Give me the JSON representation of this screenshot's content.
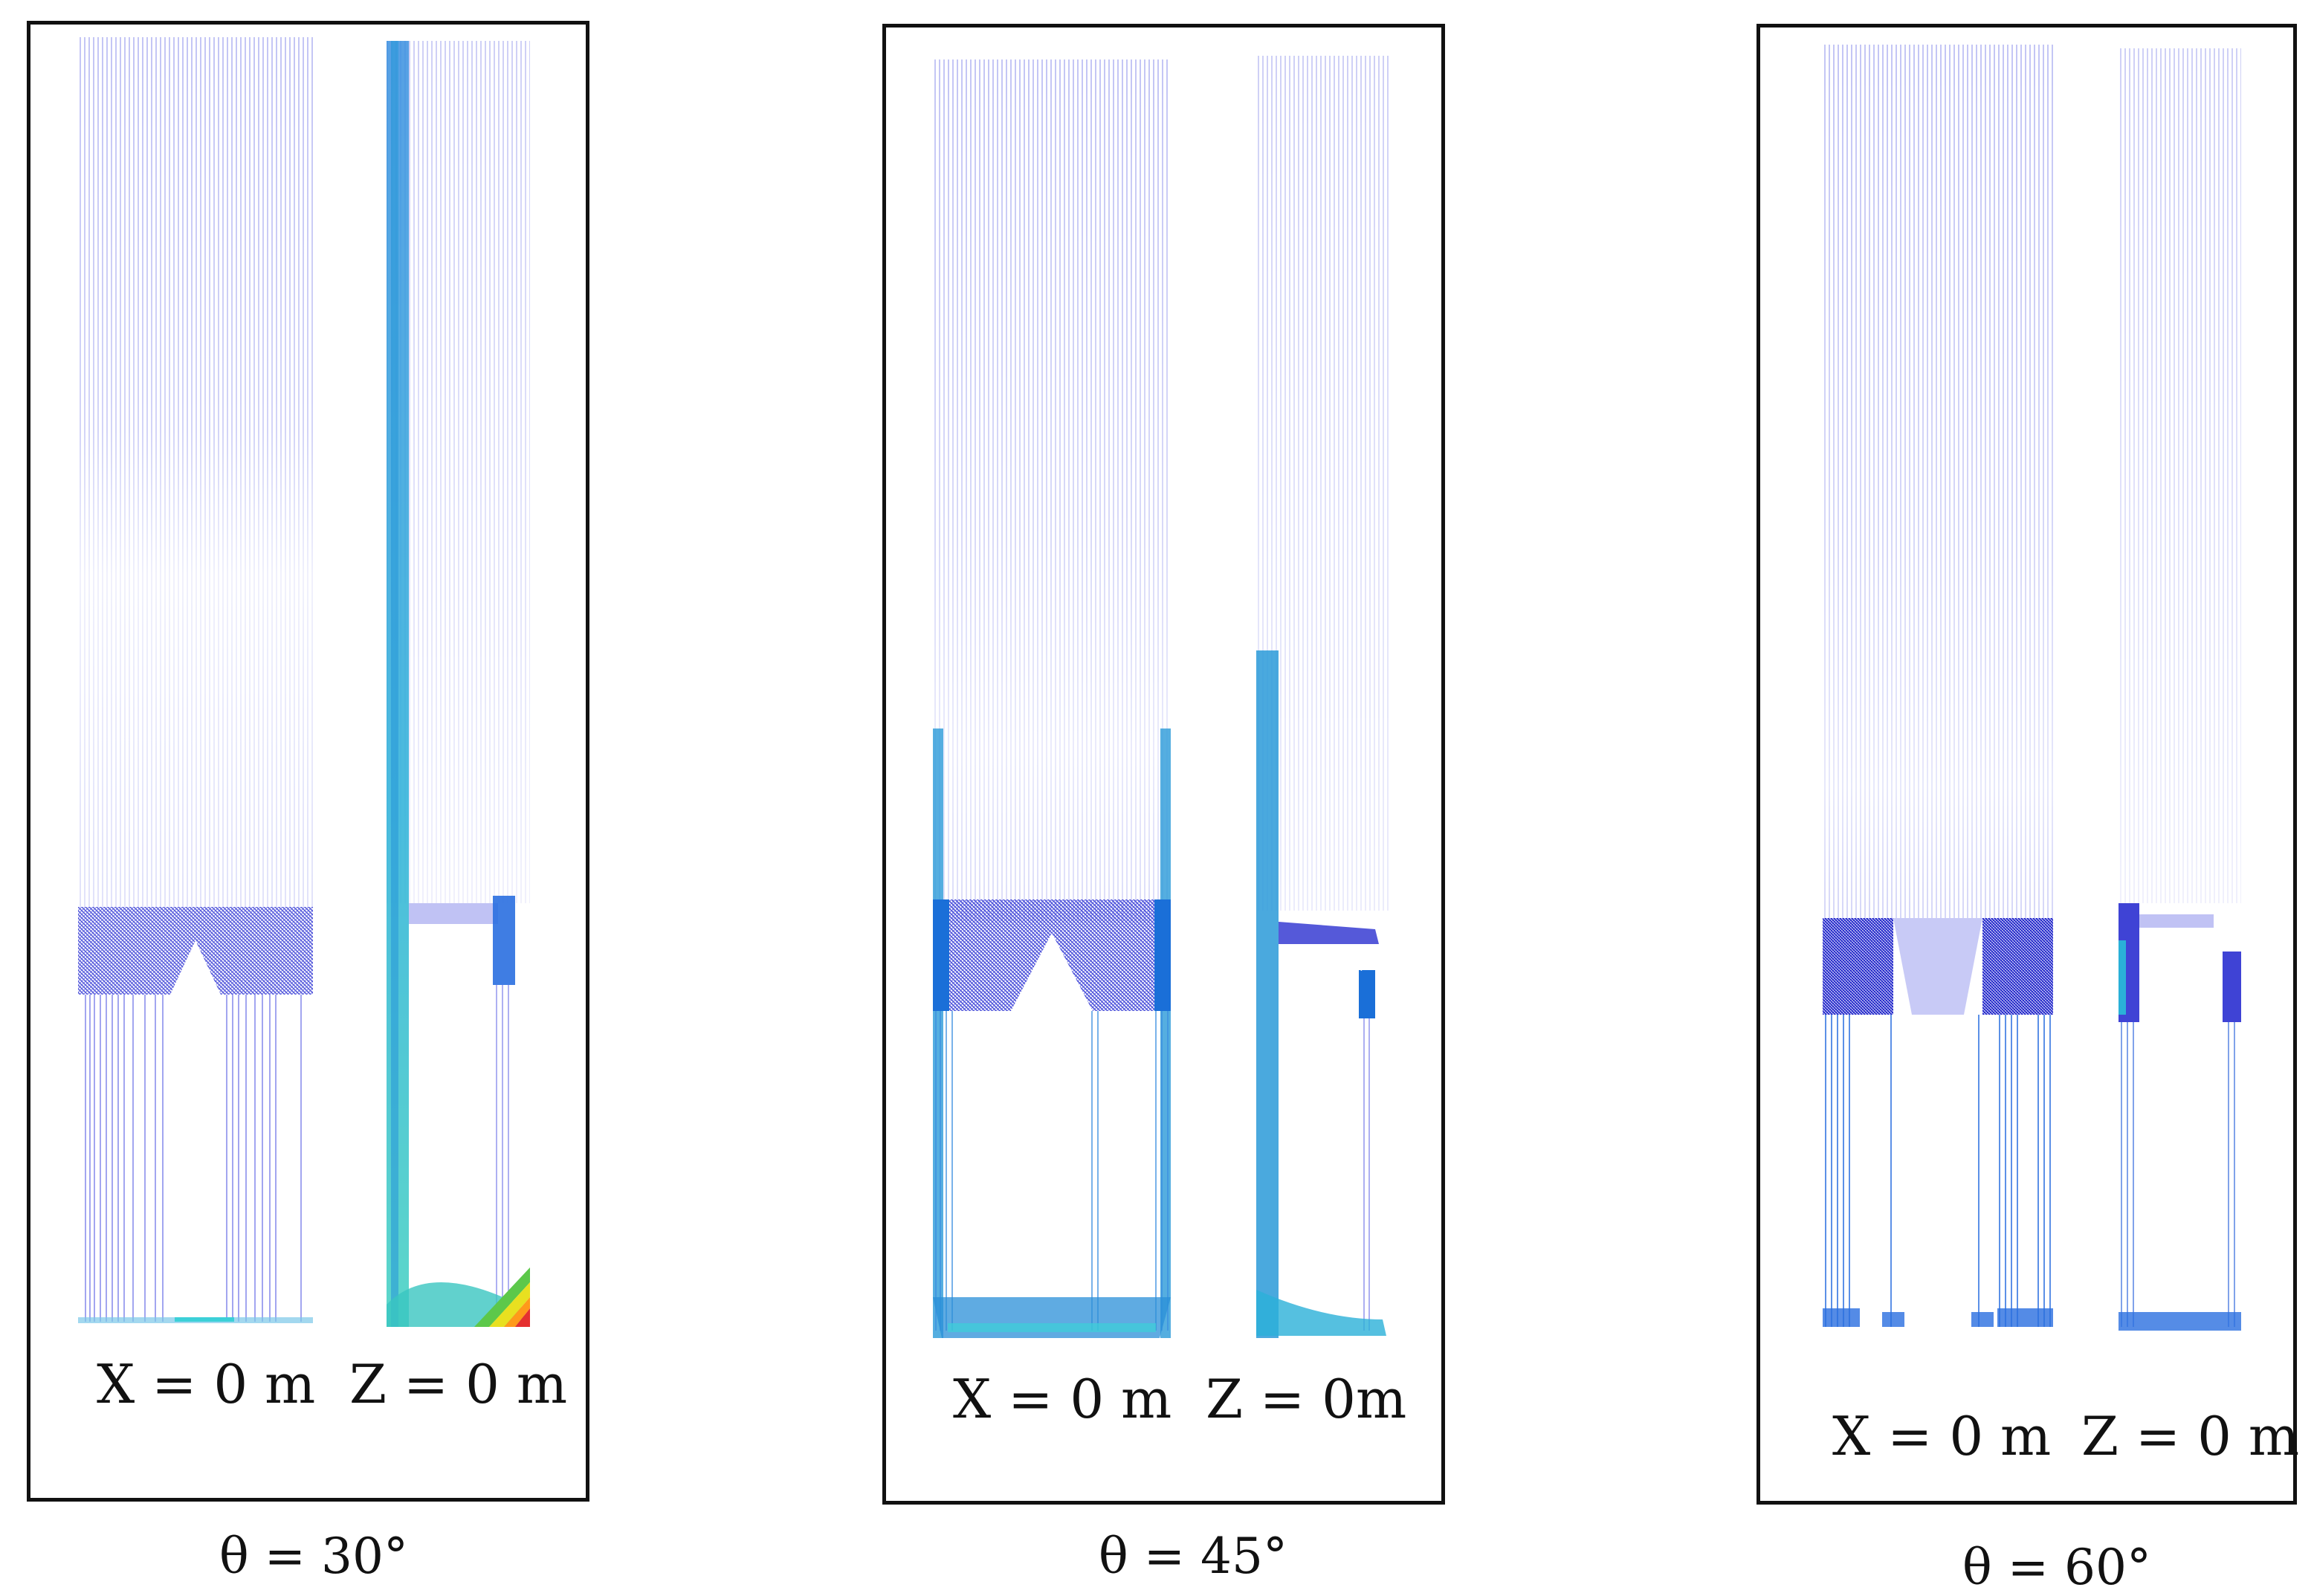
{
  "panels": [
    {
      "theta_label": "θ = 30°",
      "x_label": "X = 0 m",
      "z_label": "Z = 0 m"
    },
    {
      "theta_label": "θ = 45°",
      "x_label": "X = 0 m",
      "z_label": "Z = 0m"
    },
    {
      "theta_label": "θ = 60°",
      "x_label": "X = 0 m",
      "z_label": "Z = 0 m"
    }
  ],
  "colors": {
    "frame": "#111111",
    "vector_blue": "#3a3fd8",
    "vector_dense": "#2226c8",
    "vector_cyan": "#2ab0d8",
    "vector_teal": "#39c6c0",
    "hot_red": "#e53030",
    "hot_orange": "#ff9a1a",
    "hot_yellow": "#e8e020",
    "hot_green": "#5cc84a"
  }
}
